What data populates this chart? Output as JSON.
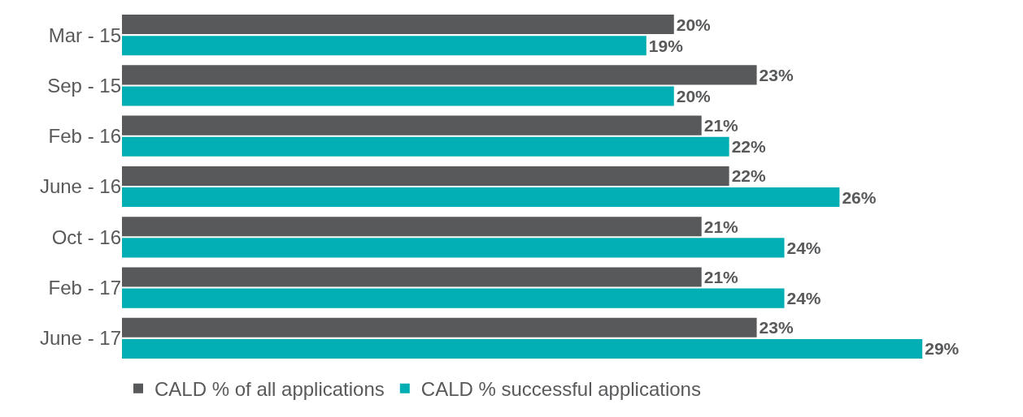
{
  "chart_data": {
    "type": "bar",
    "orientation": "horizontal",
    "categories": [
      "Mar - 15",
      "Sep - 15",
      "Feb - 16",
      "June - 16",
      "Oct - 16",
      "Feb - 17",
      "June - 17"
    ],
    "series": [
      {
        "name": "CALD % of all applications",
        "color": "#58595b",
        "values": [
          20,
          23,
          21,
          22,
          21,
          21,
          23
        ],
        "value_labels": [
          "20%",
          "23%",
          "21%",
          "22%",
          "21%",
          "21%",
          "23%"
        ]
      },
      {
        "name": "CALD % successful applications",
        "color": "#00aeb3",
        "values": [
          19,
          20,
          22,
          26,
          24,
          24,
          29
        ],
        "value_labels": [
          "19%",
          "20%",
          "22%",
          "26%",
          "24%",
          "24%",
          "29%"
        ]
      }
    ],
    "tick_labels": "y",
    "grid": false,
    "legend": "bottom left"
  }
}
